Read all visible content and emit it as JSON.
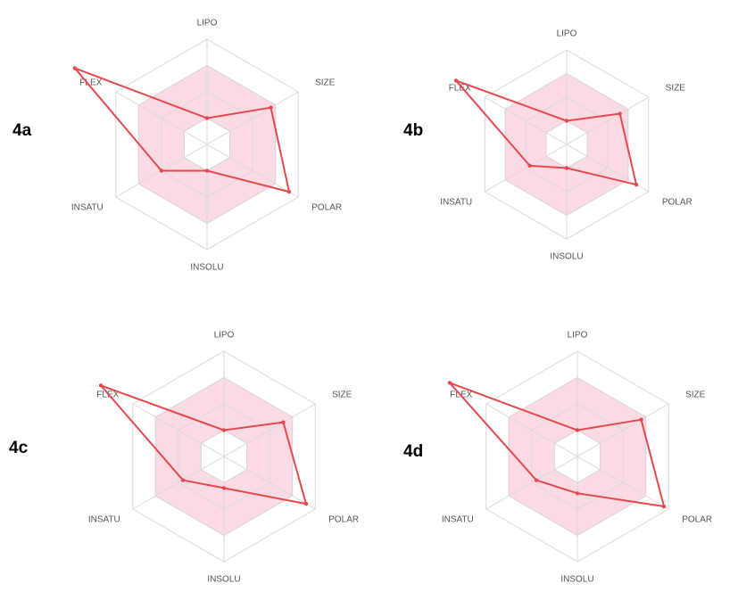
{
  "chart_data": [
    {
      "type": "radar",
      "panel_label": "4a",
      "axes": [
        "LIPO",
        "SIZE",
        "POLAR",
        "INSOLU",
        "INSATU",
        "FLEX"
      ],
      "rings": 4,
      "optimal_range": {
        "min": [
          0.25,
          0.25,
          0.25,
          0.25,
          0.25,
          0.25
        ],
        "max": [
          0.75,
          0.75,
          0.75,
          0.75,
          0.75,
          0.75
        ]
      },
      "series": [
        {
          "values": [
            0.25,
            0.7,
            0.9,
            0.25,
            0.5,
            1.45
          ]
        }
      ]
    },
    {
      "type": "radar",
      "panel_label": "4b",
      "axes": [
        "LIPO",
        "SIZE",
        "POLAR",
        "INSOLU",
        "INSATU",
        "FLEX"
      ],
      "rings": 4,
      "optimal_range": {
        "min": [
          0.25,
          0.25,
          0.25,
          0.25,
          0.25,
          0.25
        ],
        "max": [
          0.75,
          0.75,
          0.75,
          0.75,
          0.75,
          0.75
        ]
      },
      "series": [
        {
          "values": [
            0.25,
            0.65,
            0.85,
            0.25,
            0.45,
            1.35
          ]
        }
      ]
    },
    {
      "type": "radar",
      "panel_label": "4c",
      "axes": [
        "LIPO",
        "SIZE",
        "POLAR",
        "INSOLU",
        "INSATU",
        "FLEX"
      ],
      "rings": 4,
      "optimal_range": {
        "min": [
          0.25,
          0.25,
          0.25,
          0.25,
          0.25,
          0.25
        ],
        "max": [
          0.75,
          0.75,
          0.75,
          0.75,
          0.75,
          0.75
        ]
      },
      "series": [
        {
          "values": [
            0.25,
            0.65,
            0.9,
            0.3,
            0.45,
            1.35
          ]
        }
      ]
    },
    {
      "type": "radar",
      "panel_label": "4d",
      "axes": [
        "LIPO",
        "SIZE",
        "POLAR",
        "INSOLU",
        "INSATU",
        "FLEX"
      ],
      "rings": 4,
      "optimal_range": {
        "min": [
          0.25,
          0.25,
          0.25,
          0.25,
          0.25,
          0.25
        ],
        "max": [
          0.75,
          0.75,
          0.75,
          0.75,
          0.75,
          0.75
        ]
      },
      "series": [
        {
          "values": [
            0.25,
            0.7,
            0.95,
            0.35,
            0.45,
            1.4
          ]
        }
      ]
    }
  ],
  "colors": {
    "series": "#e8474f",
    "optimal_fill": "#fbdbe3",
    "optimal_stroke": "#f2b7c4",
    "grid": "#d9d9d9",
    "axis_text": "#555555"
  }
}
